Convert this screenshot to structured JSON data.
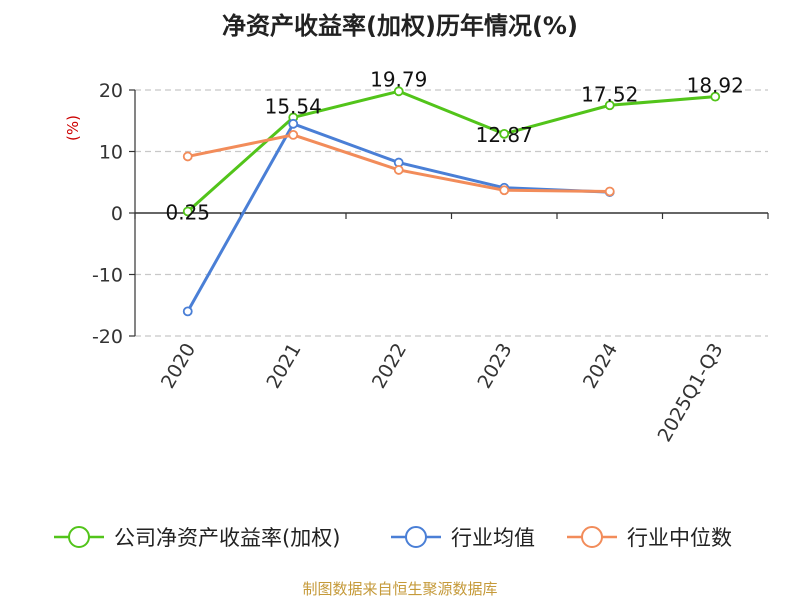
{
  "chart_data": {
    "type": "line",
    "title": "净资产收益率(加权)历年情况(%)",
    "xlabel": "",
    "ylabel": "(%)",
    "ylim": [
      -20,
      20
    ],
    "yticks": [
      20,
      10,
      0,
      -10,
      -20
    ],
    "ytick_labels": [
      "20",
      "10",
      "0",
      "-10",
      "-20"
    ],
    "grid": true,
    "legend_position": "bottom",
    "categories": [
      "2020",
      "2021",
      "2022",
      "2023",
      "2024",
      "2025Q1-Q3"
    ],
    "series": [
      {
        "name": "公司净资产收益率(加权)",
        "color": "#52c41a",
        "values": [
          0.25,
          15.54,
          19.79,
          12.87,
          17.52,
          18.92
        ],
        "labels": [
          "0.25",
          "15.54",
          "19.79",
          "12.87",
          "17.52",
          "18.92"
        ]
      },
      {
        "name": "行业均值",
        "color": "#4a7fd6",
        "values": [
          -16,
          14.5,
          8.2,
          4.1,
          3.4,
          null
        ]
      },
      {
        "name": "行业中位数",
        "color": "#f28c5a",
        "values": [
          9.2,
          12.7,
          7.0,
          3.7,
          3.5,
          null
        ]
      }
    ]
  },
  "source": "制图数据来自恒生聚源数据库"
}
